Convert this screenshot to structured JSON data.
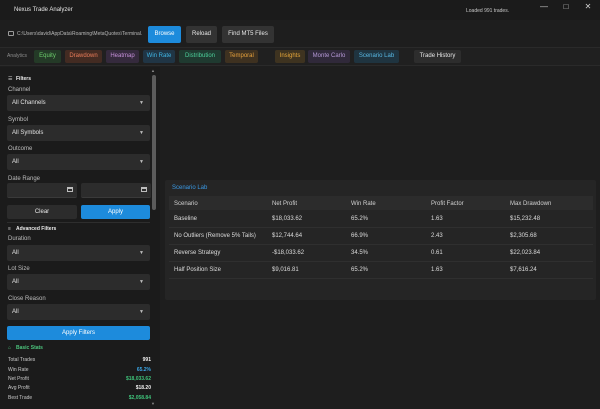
{
  "window": {
    "title": "Nexus Trade Analyzer",
    "status": "Loaded 991 trades.",
    "controls": {
      "minimize": "—",
      "maximize": "□",
      "close": "✕"
    }
  },
  "toolbar": {
    "path": "C:\\Users\\david\\AppData\\Roaming\\MetaQuotes\\Terminal...",
    "browse": "Browse",
    "reload": "Reload",
    "find_mt5": "Find MT5 Files"
  },
  "analytics": {
    "label": "Analytics",
    "chips": [
      {
        "label": "Equity",
        "color": "#6ccf6c",
        "bg": "#243a27"
      },
      {
        "label": "Drawdown",
        "color": "#ec7d5a",
        "bg": "#432b22"
      },
      {
        "label": "Heatmap",
        "color": "#c58fd9",
        "bg": "#352a3d"
      },
      {
        "label": "Win Rate",
        "color": "#3fb6e6",
        "bg": "#203545"
      },
      {
        "label": "Distribution",
        "color": "#4ccf9a",
        "bg": "#1f3a30"
      },
      {
        "label": "Temporal",
        "color": "#e8a23c",
        "bg": "#3e3120"
      },
      {
        "label": "Insights",
        "color": "#e8a83a",
        "bg": "#3e3320"
      },
      {
        "label": "Monte Carlo",
        "color": "#b79ad9",
        "bg": "#30293a"
      },
      {
        "label": "Scenario Lab",
        "color": "#58b8e3",
        "bg": "#1f3440"
      },
      {
        "label": "Trade History",
        "color": "#e8e8e8",
        "bg": "#2d2d2d"
      }
    ]
  },
  "filters": {
    "header": "Filters",
    "channel": {
      "label": "Channel",
      "value": "All Channels"
    },
    "symbol": {
      "label": "Symbol",
      "value": "All Symbols"
    },
    "outcome": {
      "label": "Outcome",
      "value": "All"
    },
    "date_range": {
      "label": "Date Range"
    },
    "clear": "Clear",
    "apply": "Apply"
  },
  "advanced": {
    "header": "Advanced Filters",
    "duration": {
      "label": "Duration",
      "value": "All"
    },
    "lot_size": {
      "label": "Lot Size",
      "value": "All"
    },
    "close_reason": {
      "label": "Close Reason",
      "value": "All"
    },
    "apply": "Apply Filters"
  },
  "basic_stats": {
    "header": "Basic Stats",
    "rows": [
      {
        "label": "Total Trades",
        "value": "991",
        "color": "#f0f0f0"
      },
      {
        "label": "Win Rate",
        "value": "65.2%",
        "color": "#3aa7e8"
      },
      {
        "label": "Net Profit",
        "value": "$18,033.62",
        "color": "#3fc37a"
      },
      {
        "label": "Avg Profit",
        "value": "$18.20",
        "color": "#f0f0f0"
      },
      {
        "label": "Best Trade",
        "value": "$2,058.84",
        "color": "#3fc37a"
      }
    ]
  },
  "scenario_lab": {
    "title": "Scenario Lab",
    "columns": [
      "Scenario",
      "Net Profit",
      "Win Rate",
      "Profit Factor",
      "Max Drawdown"
    ],
    "rows": [
      [
        "Baseline",
        "$18,033.62",
        "65.2%",
        "1.63",
        "$15,232.48"
      ],
      [
        "No Outliers (Remove 5% Tails)",
        "$12,744.64",
        "66.9%",
        "2.43",
        "$2,305.68"
      ],
      [
        "Reverse Strategy",
        "-$18,033.62",
        "34.5%",
        "0.61",
        "$22,023.84"
      ],
      [
        "Half Position Size",
        "$9,016.81",
        "65.2%",
        "1.63",
        "$7,616.24"
      ]
    ]
  }
}
